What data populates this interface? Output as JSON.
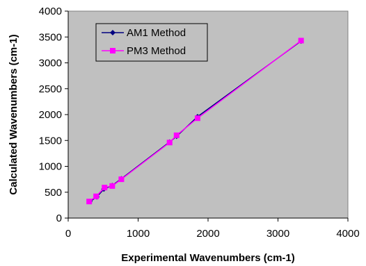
{
  "chart_data": {
    "type": "line",
    "xlabel": "Experimental Wavenumbers (cm-1)",
    "ylabel": "Calculated Wavenumbers (cm-1)",
    "xlim": [
      0,
      4000
    ],
    "ylim": [
      0,
      4000
    ],
    "xticks": [
      0,
      1000,
      2000,
      3000,
      4000
    ],
    "yticks": [
      0,
      500,
      1000,
      1500,
      2000,
      2500,
      3000,
      3500,
      4000
    ],
    "grid": false,
    "plot_background": "#c0c0c0",
    "legend_position": "top-left",
    "series": [
      {
        "name": "AM1 Method",
        "color": "#000080",
        "marker": "diamond",
        "x": [
          310,
          410,
          510,
          630,
          760,
          1450,
          1550,
          1850,
          3330
        ],
        "y": [
          320,
          410,
          560,
          630,
          760,
          1470,
          1580,
          1960,
          3420
        ]
      },
      {
        "name": "PM3 Method",
        "color": "#ff00ff",
        "marker": "square",
        "x": [
          300,
          400,
          520,
          630,
          760,
          1450,
          1550,
          1850,
          3330
        ],
        "y": [
          320,
          420,
          590,
          620,
          750,
          1460,
          1600,
          1930,
          3430
        ]
      }
    ]
  }
}
